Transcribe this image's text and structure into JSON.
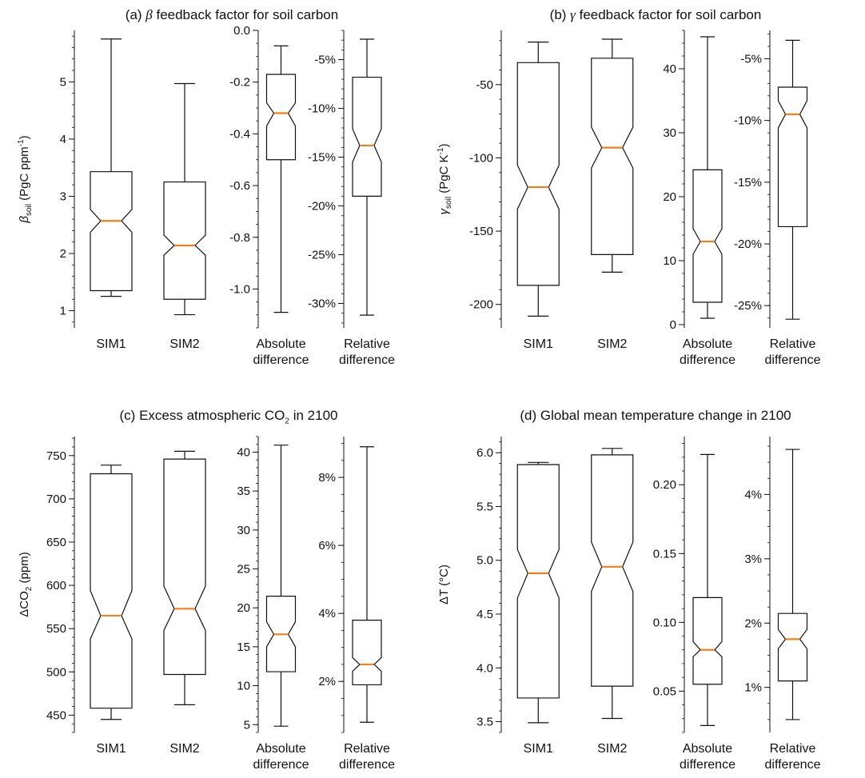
{
  "colors": {
    "median": "#f07f1e",
    "box": "#111111",
    "background": "#ffffff"
  },
  "chart_data": [
    {
      "id": "a",
      "type": "boxplot",
      "title": {
        "prefix": "(a) ",
        "symbol": "β",
        "text": " feedback factor for soil carbon"
      },
      "subplots": [
        {
          "ylabel": {
            "sym": "β",
            "sub": "soil",
            "rest": " (PgC ppm",
            "sup": "-1",
            "end": ")"
          },
          "ylim": [
            0.7,
            5.9
          ],
          "ticks": [
            1,
            2,
            3,
            4,
            5
          ],
          "tick_labels": [
            "1",
            "2",
            "3",
            "4",
            "5"
          ],
          "minor_step": 0.2,
          "boxes": [
            {
              "label": [
                "SIM1"
              ],
              "whislo": 1.25,
              "q1": 1.35,
              "med": 2.57,
              "q3": 3.43,
              "whishi": 5.75,
              "notch": [
                2.37,
                2.77
              ]
            },
            {
              "label": [
                "SIM2"
              ],
              "whislo": 0.93,
              "q1": 1.2,
              "med": 2.14,
              "q3": 3.25,
              "whishi": 4.97,
              "notch": [
                1.97,
                2.32
              ]
            }
          ]
        },
        {
          "ylim": [
            -1.15,
            0.0
          ],
          "ticks": [
            -1.0,
            -0.8,
            -0.6,
            -0.4,
            -0.2,
            0.0
          ],
          "tick_labels": [
            "-1.0",
            "-0.8",
            "-0.6",
            "-0.4",
            "-0.2",
            "0.0"
          ],
          "minor_step": 0.05,
          "boxes": [
            {
              "label": [
                "Absolute",
                "difference"
              ],
              "whislo": -1.09,
              "q1": -0.5,
              "med": -0.32,
              "q3": -0.17,
              "whishi": -0.06,
              "notch": [
                -0.37,
                -0.28
              ]
            }
          ]
        },
        {
          "ylim": [
            -0.325,
            -0.02
          ],
          "ticks": [
            -0.3,
            -0.25,
            -0.2,
            -0.15,
            -0.1,
            -0.05
          ],
          "tick_labels": [
            "-30%",
            "-25%",
            "-20%",
            "-15%",
            "-10%",
            "-5%"
          ],
          "minor_step": 0.01,
          "boxes": [
            {
              "label": [
                "Relative",
                "difference"
              ],
              "whislo": -0.312,
              "q1": -0.19,
              "med": -0.138,
              "q3": -0.068,
              "whishi": -0.029,
              "notch": [
                -0.155,
                -0.121
              ]
            }
          ]
        }
      ]
    },
    {
      "id": "b",
      "type": "boxplot",
      "title": {
        "prefix": "(b) ",
        "symbol": "γ",
        "text": " feedback factor for soil carbon"
      },
      "subplots": [
        {
          "ylabel": {
            "sym": "γ",
            "sub": "soil",
            "rest": " (PgC K",
            "sup": "-1",
            "end": ")"
          },
          "ylim": [
            -216,
            -13
          ],
          "ticks": [
            -200,
            -150,
            -100,
            -50
          ],
          "tick_labels": [
            "-200",
            "-150",
            "-100",
            "-50"
          ],
          "minor_step": 10,
          "boxes": [
            {
              "label": [
                "SIM1"
              ],
              "whislo": -208,
              "q1": -187,
              "med": -120,
              "q3": -35,
              "whishi": -21,
              "notch": [
                -135,
                -105
              ]
            },
            {
              "label": [
                "SIM2"
              ],
              "whislo": -178,
              "q1": -166,
              "med": -93,
              "q3": -32,
              "whishi": -19,
              "notch": [
                -107,
                -79
              ]
            }
          ]
        },
        {
          "ylim": [
            -0.5,
            46
          ],
          "ticks": [
            0,
            10,
            20,
            30,
            40
          ],
          "tick_labels": [
            "0",
            "10",
            "20",
            "30",
            "40"
          ],
          "minor_step": 2,
          "boxes": [
            {
              "label": [
                "Absolute",
                "difference"
              ],
              "whislo": 1,
              "q1": 3.5,
              "med": 13,
              "q3": 24.2,
              "whishi": 45,
              "notch": [
                11,
                15
              ]
            }
          ]
        },
        {
          "ylim": [
            -0.268,
            -0.027
          ],
          "ticks": [
            -0.25,
            -0.2,
            -0.15,
            -0.1,
            -0.05
          ],
          "tick_labels": [
            "-25%",
            "-20%",
            "-15%",
            "-10%",
            "-5%"
          ],
          "minor_step": 0.01,
          "boxes": [
            {
              "label": [
                "Relative",
                "difference"
              ],
              "whislo": -0.261,
              "q1": -0.186,
              "med": -0.095,
              "q3": -0.073,
              "whishi": -0.035,
              "notch": [
                -0.106,
                -0.084
              ]
            }
          ]
        }
      ]
    },
    {
      "id": "c",
      "type": "boxplot",
      "title": {
        "prefix": "(c) Excess atmospheric CO",
        "sub": "2",
        "text": " in 2100"
      },
      "subplots": [
        {
          "ylabel": {
            "sym": "ΔCO",
            "sub": "2",
            "rest": " (ppm)",
            "sup": "",
            "end": ""
          },
          "ylim": [
            430,
            772
          ],
          "ticks": [
            450,
            500,
            550,
            600,
            650,
            700,
            750
          ],
          "tick_labels": [
            "450",
            "500",
            "550",
            "600",
            "650",
            "700",
            "750"
          ],
          "minor_step": 10,
          "boxes": [
            {
              "label": [
                "SIM1"
              ],
              "whislo": 445,
              "q1": 458,
              "med": 565,
              "q3": 729,
              "whishi": 739,
              "notch": [
                538,
                594
              ]
            },
            {
              "label": [
                "SIM2"
              ],
              "whislo": 462,
              "q1": 497,
              "med": 573,
              "q3": 746,
              "whishi": 755,
              "notch": [
                548,
                599
              ]
            }
          ]
        },
        {
          "ylim": [
            4,
            42
          ],
          "ticks": [
            5,
            10,
            15,
            20,
            25,
            30,
            35,
            40
          ],
          "tick_labels": [
            "5",
            "10",
            "15",
            "20",
            "25",
            "30",
            "35",
            "40"
          ],
          "minor_step": 1,
          "boxes": [
            {
              "label": [
                "Absolute",
                "difference"
              ],
              "whislo": 4.8,
              "q1": 11.8,
              "med": 16.6,
              "q3": 21.5,
              "whishi": 40.9,
              "notch": [
                15.0,
                18.2
              ]
            }
          ]
        },
        {
          "ylim": [
            0.005,
            0.092
          ],
          "ticks": [
            0.02,
            0.04,
            0.06,
            0.08
          ],
          "tick_labels": [
            "2%",
            "4%",
            "6%",
            "8%"
          ],
          "minor_step": 0.005,
          "boxes": [
            {
              "label": [
                "Relative",
                "difference"
              ],
              "whislo": 0.008,
              "q1": 0.019,
              "med": 0.025,
              "q3": 0.038,
              "whishi": 0.089,
              "notch": [
                0.023,
                0.027
              ]
            }
          ]
        }
      ]
    },
    {
      "id": "d",
      "type": "boxplot",
      "title": {
        "prefix": "(d) Global mean temperature change in 2100",
        "text": ""
      },
      "subplots": [
        {
          "ylabel": {
            "sym": "ΔT (°C)",
            "sub": "",
            "rest": "",
            "sup": "",
            "end": ""
          },
          "ylim": [
            3.4,
            6.15
          ],
          "ticks": [
            3.5,
            4.0,
            4.5,
            5.0,
            5.5,
            6.0
          ],
          "tick_labels": [
            "3.5",
            "4.0",
            "4.5",
            "5.0",
            "5.5",
            "6.0"
          ],
          "minor_step": 0.1,
          "boxes": [
            {
              "label": [
                "SIM1"
              ],
              "whislo": 3.49,
              "q1": 3.72,
              "med": 4.88,
              "q3": 5.89,
              "whishi": 5.91,
              "notch": [
                4.65,
                5.1
              ]
            },
            {
              "label": [
                "SIM2"
              ],
              "whislo": 3.53,
              "q1": 3.83,
              "med": 4.94,
              "q3": 5.98,
              "whishi": 6.04,
              "notch": [
                4.71,
                5.17
              ]
            }
          ]
        },
        {
          "ylim": [
            0.02,
            0.235
          ],
          "ticks": [
            0.05,
            0.1,
            0.15,
            0.2
          ],
          "tick_labels": [
            "0.05",
            "0.10",
            "0.15",
            "0.20"
          ],
          "minor_step": 0.01,
          "boxes": [
            {
              "label": [
                "Absolute",
                "difference"
              ],
              "whislo": 0.025,
              "q1": 0.055,
              "med": 0.08,
              "q3": 0.118,
              "whishi": 0.222,
              "notch": [
                0.075,
                0.086
              ]
            }
          ]
        },
        {
          "ylim": [
            0.003,
            0.049
          ],
          "ticks": [
            0.01,
            0.02,
            0.03,
            0.04
          ],
          "tick_labels": [
            "1%",
            "2%",
            "3%",
            "4%"
          ],
          "minor_step": 0.0025,
          "boxes": [
            {
              "label": [
                "Relative",
                "difference"
              ],
              "whislo": 0.005,
              "q1": 0.011,
              "med": 0.0175,
              "q3": 0.0215,
              "whishi": 0.047,
              "notch": [
                0.016,
                0.019
              ]
            }
          ]
        }
      ]
    }
  ]
}
